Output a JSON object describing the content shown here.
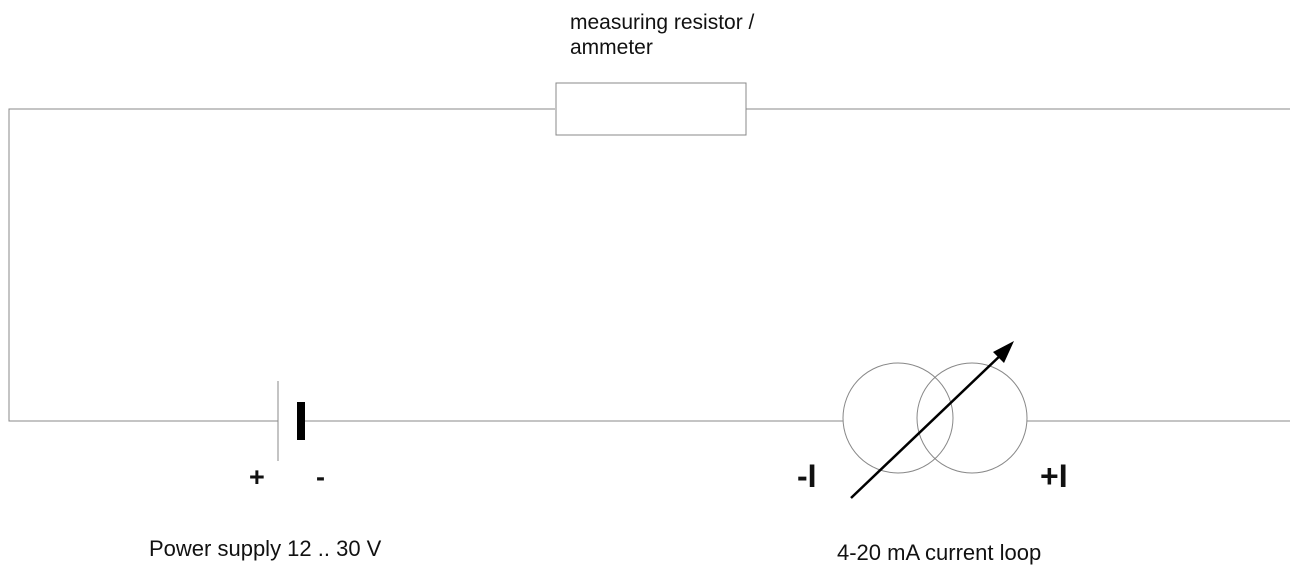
{
  "diagram": {
    "resistor_label_line1": "measuring resistor /",
    "resistor_label_line2": "ammeter",
    "battery_plus": "+",
    "battery_minus": "-",
    "current_source_minus": "-I",
    "current_source_plus": "+I",
    "power_supply_label": "Power supply 12 .. 30 V",
    "current_loop_label": "4-20 mA current loop"
  },
  "colors": {
    "wire": "#888888",
    "stroke": "#000000",
    "text": "#111111",
    "background": "#ffffff"
  }
}
